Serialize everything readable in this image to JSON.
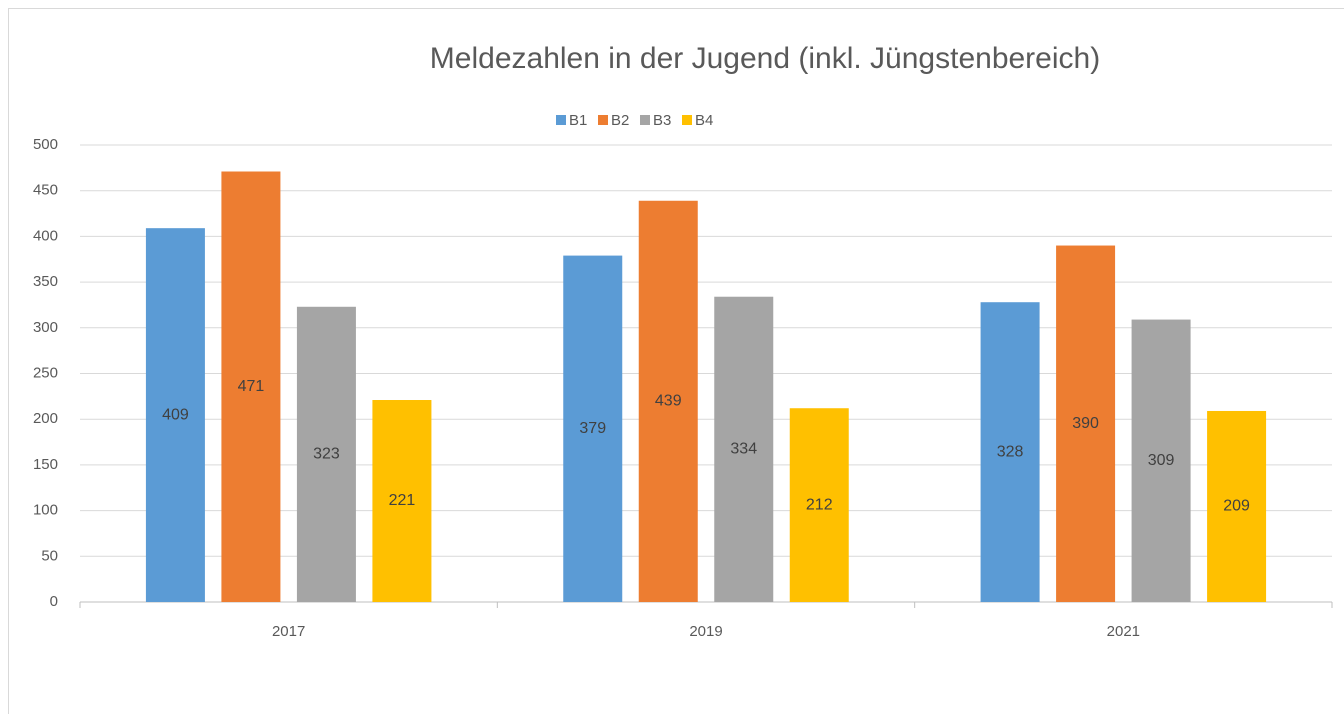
{
  "chart_data": {
    "type": "bar",
    "title": "Meldezahlen in der Jugend (inkl. Jüngstenbereich)",
    "categories": [
      "2017",
      "2019",
      "2021"
    ],
    "series": [
      {
        "name": "B1",
        "color": "#5b9bd5",
        "values": [
          409,
          379,
          328
        ]
      },
      {
        "name": "B2",
        "color": "#ed7d31",
        "values": [
          471,
          439,
          390
        ]
      },
      {
        "name": "B3",
        "color": "#a5a5a5",
        "values": [
          323,
          334,
          309
        ]
      },
      {
        "name": "B4",
        "color": "#ffc000",
        "values": [
          221,
          212,
          209
        ]
      }
    ],
    "ylim": [
      0,
      500
    ],
    "yticks": [
      0,
      50,
      100,
      150,
      200,
      250,
      300,
      350,
      400,
      450,
      500
    ],
    "grid": true,
    "legend": "top",
    "data_labels": true
  }
}
